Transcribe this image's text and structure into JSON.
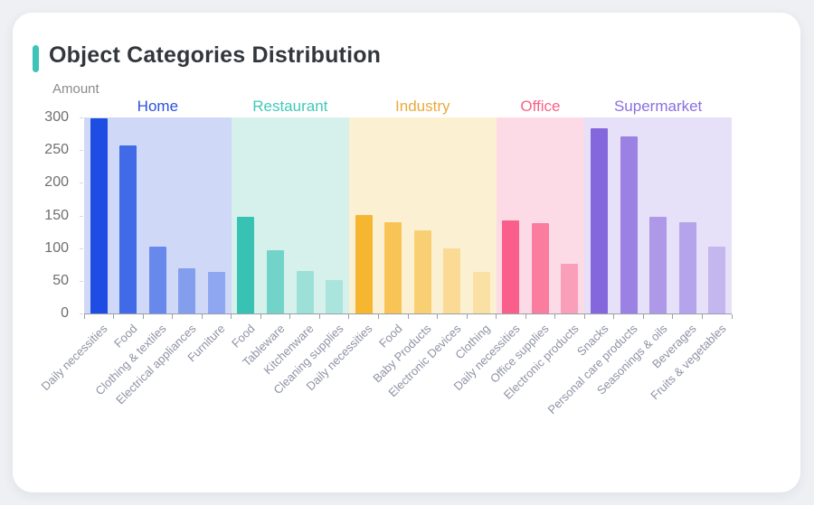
{
  "page": {
    "title": "Object Categories Distribution",
    "accent_color": "#3EC3B9",
    "card_bg": "#FFFFFF",
    "page_bg": "#EEF0F3"
  },
  "chart_data": {
    "type": "bar",
    "title": "Object Categories Distribution",
    "xlabel": "",
    "ylabel": "Amount",
    "ylim": [
      0,
      300
    ],
    "yticks": [
      0,
      50,
      100,
      150,
      200,
      250,
      300
    ],
    "grid": false,
    "legend_position": "group headers above color bands",
    "groups": [
      {
        "label": "Home",
        "label_color": "#2B50E0",
        "bar_color": "#1D4DE3",
        "band_color": "#CFD9F7",
        "bar_alphas": [
          1,
          0.8,
          0.58,
          0.42,
          0.36
        ],
        "categories": [
          "Daily necessities",
          "Food",
          "Clothing & textiles",
          "Electrical appliances",
          "Furniture"
        ],
        "values": [
          298,
          257,
          102,
          69,
          64
        ]
      },
      {
        "label": "Restaurant",
        "label_color": "#41C9B8",
        "bar_color": "#38C2B4",
        "band_color": "#D6F1EC",
        "bar_alphas": [
          1,
          0.63,
          0.37,
          0.27
        ],
        "categories": [
          "Food",
          "Tableware",
          "Kitchenware",
          "Cleaning supplies"
        ],
        "values": [
          148,
          97,
          65,
          51
        ]
      },
      {
        "label": "Industry",
        "label_color": "#EAA93C",
        "bar_color": "#F7B62F",
        "band_color": "#FCF0D2",
        "bar_alphas": [
          1,
          0.76,
          0.58,
          0.38,
          0.28
        ],
        "categories": [
          "Daily necessities",
          "Food",
          "Baby Products",
          "Electronic Devices",
          "Clothing"
        ],
        "values": [
          151,
          139,
          127,
          100,
          64
        ]
      },
      {
        "label": "Office",
        "label_color": "#FA6189",
        "bar_color": "#F95F8A",
        "band_color": "#FCDBE6",
        "bar_alphas": [
          1,
          0.77,
          0.48
        ],
        "categories": [
          "Daily necessities",
          "Office supplies",
          "Electronic products"
        ],
        "values": [
          143,
          138,
          76
        ]
      },
      {
        "label": "Supermarket",
        "label_color": "#8B6FE0",
        "bar_color": "#8467DD",
        "band_color": "#E6E0F8",
        "bar_alphas": [
          1,
          0.78,
          0.59,
          0.5,
          0.35
        ],
        "categories": [
          "Snacks",
          "Personal care products",
          "Seasonings & oils",
          "Beverages",
          "Fruits & vegetables"
        ],
        "values": [
          284,
          271,
          148,
          140,
          102
        ]
      }
    ]
  }
}
